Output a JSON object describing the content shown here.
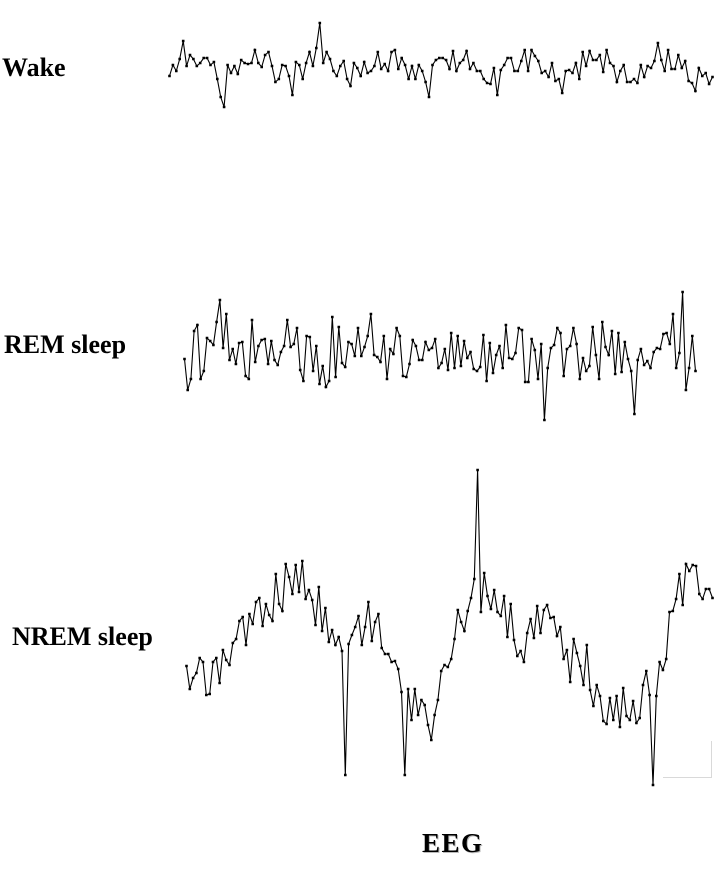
{
  "figure": {
    "background_color": "#ffffff",
    "trace_color": "#000000",
    "artifact_box_border_color": "#d9d9d9"
  },
  "chart_data": {
    "type": "line",
    "title": "",
    "xlabel": "EEG",
    "ylabel": "",
    "axes_visible": false,
    "grid": false,
    "legend_position": "labels left of each trace",
    "style": {
      "marker": "square",
      "marker_size": 2.6,
      "line_width": 1.1,
      "color": "#000000"
    },
    "x_unit": "time (samples)",
    "y_unit": "amplitude (arbitrary units, offset from each trace baseline)",
    "series": [
      {
        "name": "Wake",
        "ylim": [
          -45,
          45
        ],
        "values": [
          -9,
          2,
          -4,
          8,
          26,
          1,
          12,
          8,
          1,
          4,
          9,
          9,
          2,
          5,
          -12,
          -30,
          -40,
          2,
          -6,
          1,
          -7,
          7,
          4,
          3,
          4,
          17,
          4,
          0,
          12,
          15,
          1,
          -15,
          -12,
          2,
          1,
          -9,
          -28,
          5,
          2,
          -12,
          4,
          15,
          1,
          19,
          44,
          4,
          15,
          8,
          -4,
          -9,
          1,
          6,
          -12,
          -19,
          4,
          -1,
          -9,
          5,
          -6,
          -4,
          1,
          15,
          -2,
          3,
          -4,
          15,
          17,
          -2,
          9,
          2,
          -12,
          1,
          -12,
          2,
          -4,
          -15,
          -30,
          2,
          7,
          9,
          9,
          7,
          -2,
          16,
          -4,
          4,
          7,
          16,
          -2,
          4,
          -4,
          -4,
          -12,
          -16,
          -17,
          -1,
          -28,
          -3,
          2,
          9,
          9,
          -4,
          -4,
          6,
          17,
          -4,
          17,
          11,
          6,
          -6,
          -4,
          -10,
          4,
          -14,
          -12,
          -26,
          -4,
          -3,
          -6,
          4,
          -12,
          15,
          1,
          16,
          7,
          7,
          12,
          -5,
          17,
          4,
          1,
          -15,
          -4,
          2,
          -15,
          -15,
          -12,
          -16,
          2,
          -10,
          1,
          -1,
          6,
          24,
          7,
          -4,
          17,
          -2,
          -2,
          12,
          -1,
          6,
          -14,
          -16,
          -24,
          -1,
          -9,
          -6,
          -17,
          -10
        ]
      },
      {
        "name": "REM sleep",
        "ylim": [
          -70,
          65
        ],
        "values": [
          -7,
          -38,
          -27,
          21,
          27,
          -27,
          -19,
          14,
          11,
          7,
          30,
          52,
          4,
          38,
          -8,
          3,
          -12,
          9,
          10,
          -24,
          -27,
          32,
          -10,
          6,
          12,
          13,
          -12,
          11,
          -8,
          -13,
          0,
          6,
          32,
          5,
          8,
          24,
          -18,
          -29,
          16,
          15,
          -19,
          6,
          -32,
          -14,
          -35,
          -29,
          35,
          -25,
          25,
          -11,
          -15,
          10,
          8,
          -4,
          24,
          -4,
          5,
          16,
          38,
          -3,
          -5,
          -10,
          16,
          -27,
          3,
          -2,
          24,
          16,
          -24,
          -25,
          -12,
          12,
          6,
          -8,
          -8,
          10,
          2,
          4,
          13,
          -16,
          -11,
          3,
          -18,
          19,
          -16,
          16,
          -14,
          11,
          -6,
          0,
          -17,
          -19,
          -15,
          17,
          -29,
          9,
          -21,
          -3,
          6,
          -16,
          27,
          -6,
          -7,
          -1,
          24,
          22,
          -30,
          -30,
          13,
          2,
          -27,
          8,
          -68,
          -16,
          4,
          7,
          24,
          19,
          -24,
          3,
          6,
          24,
          8,
          -27,
          -6,
          -19,
          -14,
          25,
          -3,
          -27,
          30,
          5,
          -3,
          21,
          -22,
          19,
          -20,
          10,
          -7,
          -19,
          -62,
          -8,
          3,
          -13,
          -9,
          -16,
          0,
          4,
          3,
          18,
          19,
          8,
          38,
          -16,
          -1,
          60,
          -38,
          -16,
          16,
          -19
        ]
      },
      {
        "name": "NREM sleep",
        "ylim": [
          -135,
          190
        ],
        "values": [
          -11,
          -34,
          -23,
          -18,
          -3,
          -7,
          -40,
          -39,
          -7,
          -3,
          -28,
          5,
          -5,
          -10,
          12,
          16,
          34,
          38,
          10,
          41,
          31,
          53,
          57,
          29,
          51,
          40,
          34,
          81,
          51,
          44,
          91,
          78,
          61,
          90,
          63,
          94,
          56,
          65,
          55,
          30,
          68,
          24,
          47,
          13,
          25,
          10,
          18,
          4,
          -120,
          11,
          20,
          28,
          39,
          10,
          28,
          53,
          14,
          33,
          41,
          7,
          1,
          1,
          -7,
          -6,
          -14,
          -37,
          -120,
          -34,
          -65,
          -34,
          -60,
          -45,
          -50,
          -70,
          -85,
          -60,
          -45,
          -16,
          -10,
          -12,
          -4,
          16,
          45,
          33,
          24,
          44,
          57,
          76,
          185,
          43,
          82,
          59,
          46,
          65,
          43,
          39,
          59,
          18,
          51,
          15,
          -1,
          4,
          -7,
          22,
          36,
          17,
          49,
          22,
          45,
          50,
          37,
          38,
          19,
          28,
          -4,
          5,
          -27,
          16,
          2,
          -11,
          -30,
          10,
          -35,
          -51,
          -30,
          -41,
          -66,
          -69,
          -43,
          -65,
          -41,
          -72,
          -33,
          -61,
          -65,
          -46,
          -68,
          -63,
          -30,
          -16,
          -40,
          -130,
          -41,
          -7,
          -15,
          -4,
          43,
          44,
          56,
          81,
          50,
          91,
          84,
          90,
          89,
          61,
          56,
          66,
          66,
          57
        ]
      }
    ]
  }
}
